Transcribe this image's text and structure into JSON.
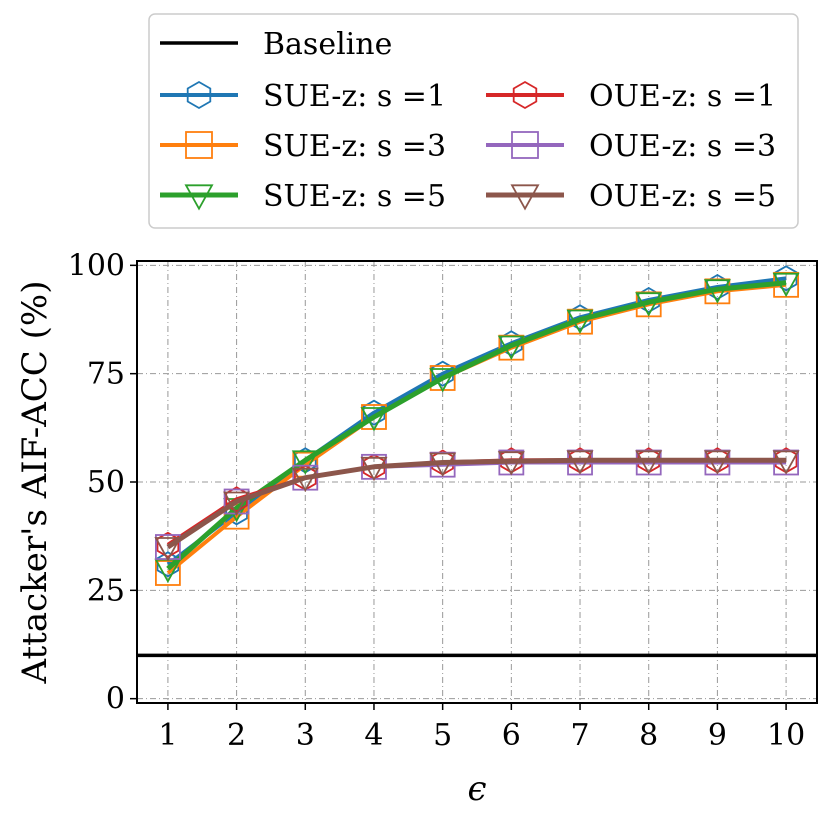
{
  "chart_data": {
    "type": "line",
    "xlabel": "ϵ",
    "ylabel": "Attacker's AIF-ACC (%)",
    "xlim": [
      0.55,
      10.45
    ],
    "ylim": [
      -1,
      101
    ],
    "x": [
      1,
      2,
      3,
      4,
      5,
      6,
      7,
      8,
      9,
      10
    ],
    "xticks": [
      "1",
      "2",
      "3",
      "4",
      "5",
      "6",
      "7",
      "8",
      "9",
      "10"
    ],
    "yticks": [
      0,
      25,
      50,
      75,
      100
    ],
    "grid": true,
    "legend_position": "top-center, above plot",
    "baseline": {
      "name": "Baseline",
      "value": 10,
      "color": "#000000"
    },
    "series": [
      {
        "name": "SUE-z: s =1",
        "color": "#1f77b4",
        "marker": "hexagon",
        "width": 4,
        "values": [
          31,
          43,
          55,
          66,
          75,
          82,
          88,
          92,
          95,
          97
        ]
      },
      {
        "name": "SUE-z: s =3",
        "color": "#ff7f0e",
        "marker": "square",
        "width": 4,
        "values": [
          29,
          42,
          54,
          65,
          74,
          81,
          87,
          91,
          94,
          95.5
        ]
      },
      {
        "name": "SUE-z: s =5",
        "color": "#2ca02c",
        "marker": "triangle-down",
        "width": 5,
        "values": [
          30,
          44,
          55,
          65,
          74,
          81.5,
          87.5,
          91.5,
          94.5,
          96
        ]
      },
      {
        "name": "OUE-z: s =1",
        "color": "#d62728",
        "marker": "hexagon",
        "width": 4,
        "values": [
          35.5,
          46,
          51,
          53.5,
          54.5,
          55,
          55,
          55,
          55,
          55
        ]
      },
      {
        "name": "OUE-z: s =3",
        "color": "#9467bd",
        "marker": "square",
        "width": 4,
        "values": [
          35,
          45.5,
          51,
          53.5,
          54,
          54.5,
          54.5,
          54.5,
          54.5,
          54.5
        ]
      },
      {
        "name": "OUE-z: s =5",
        "color": "#8c564b",
        "marker": "triangle-down",
        "width": 5,
        "values": [
          35,
          45.5,
          51,
          53.5,
          54.5,
          54.8,
          55,
          55,
          55,
          55
        ]
      }
    ]
  }
}
